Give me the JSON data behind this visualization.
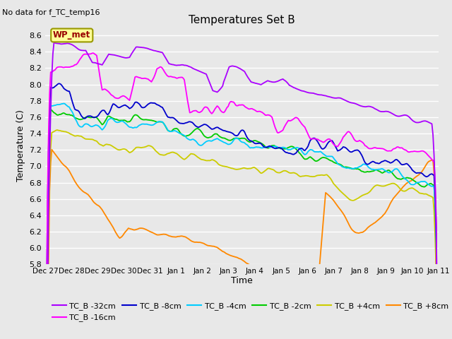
{
  "title": "Temperatures Set B",
  "subtitle": "No data for f_TC_temp16",
  "xlabel": "Time",
  "ylabel": "Temperature (C)",
  "ylim": [
    5.8,
    8.7
  ],
  "bg_color": "#e8e8e8",
  "wp_met_label": "WP_met",
  "wp_met_color": "#990000",
  "wp_met_bg": "#ffff99",
  "colors": {
    "TC_B -32cm": "#aa00ff",
    "TC_B -16cm": "#ff00ff",
    "TC_B -8cm": "#0000cc",
    "TC_B -4cm": "#00ccff",
    "TC_B -2cm": "#00cc00",
    "TC_B +4cm": "#cccc00",
    "TC_B +8cm": "#ff8800"
  },
  "xtick_labels": [
    "Dec 27",
    "Dec 28",
    "Dec 29",
    "Dec 30",
    "Dec 31",
    "Jan 1",
    "Jan 2",
    "Jan 3",
    "Jan 4",
    "Jan 5",
    "Jan 6",
    "Jan 7",
    "Jan 8",
    "Jan 9",
    "Jan 10",
    "Jan 11"
  ],
  "ytick_positions": [
    5.8,
    6.0,
    6.2,
    6.4,
    6.6,
    6.8,
    7.0,
    7.2,
    7.4,
    7.6,
    7.8,
    8.0,
    8.2,
    8.4,
    8.6
  ]
}
